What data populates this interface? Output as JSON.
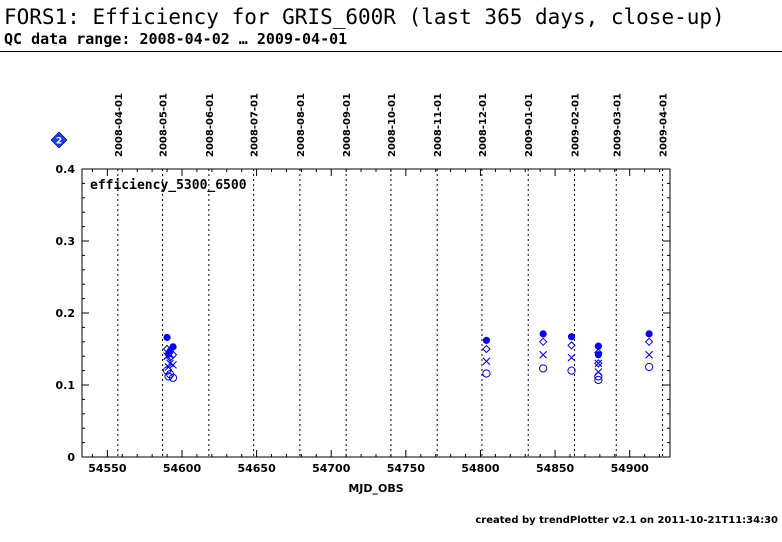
{
  "header": {
    "title": "FORS1: Efficiency for GRIS_600R (last 365 days, close-up)",
    "subtitle": "QC data range: 2008-04-02 … 2009-04-01"
  },
  "footer": {
    "credit": "created by trendPlotter v2.1 on 2011-10-21T11:34:30"
  },
  "legend_icon": "diamond-2-icon",
  "legend_icon_label": "2",
  "colors": {
    "series": "#0000ff",
    "axis": "#000000",
    "icon": "#1a3cff"
  },
  "chart_data": {
    "type": "scatter",
    "title": "",
    "panel_label": "efficiency_5300_6500",
    "xlabel": "MJD_OBS",
    "ylabel": "",
    "xlim": [
      54533,
      54927
    ],
    "ylim": [
      0,
      0.4
    ],
    "x_ticks": [
      54550,
      54600,
      54650,
      54700,
      54750,
      54800,
      54850,
      54900
    ],
    "y_ticks": [
      0,
      0.1,
      0.2,
      0.3,
      0.4
    ],
    "y_tick_labels": [
      "0",
      "0.1",
      "0.2",
      "0.3",
      "0.4"
    ],
    "date_markers": [
      {
        "label": "2008-04-01",
        "mjd": 54557
      },
      {
        "label": "2008-05-01",
        "mjd": 54587
      },
      {
        "label": "2008-06-01",
        "mjd": 54618
      },
      {
        "label": "2008-07-01",
        "mjd": 54648
      },
      {
        "label": "2008-08-01",
        "mjd": 54679
      },
      {
        "label": "2008-09-01",
        "mjd": 54710
      },
      {
        "label": "2008-10-01",
        "mjd": 54740
      },
      {
        "label": "2008-11-01",
        "mjd": 54771
      },
      {
        "label": "2008-12-01",
        "mjd": 54801
      },
      {
        "label": "2009-01-01",
        "mjd": 54832
      },
      {
        "label": "2009-02-01",
        "mjd": 54863
      },
      {
        "label": "2009-03-01",
        "mjd": 54891
      },
      {
        "label": "2009-04-01",
        "mjd": 54922
      }
    ],
    "series": [
      {
        "name": "filled-circle",
        "marker": "filled-circle",
        "points": [
          [
            54590,
            0.166
          ],
          [
            54591,
            0.143
          ],
          [
            54592,
            0.147
          ],
          [
            54594,
            0.153
          ],
          [
            54804,
            0.162
          ],
          [
            54842,
            0.171
          ],
          [
            54861,
            0.167
          ],
          [
            54879,
            0.154
          ],
          [
            54879,
            0.142
          ],
          [
            54913,
            0.171
          ]
        ]
      },
      {
        "name": "diamond",
        "marker": "diamond",
        "points": [
          [
            54590,
            0.15
          ],
          [
            54592,
            0.138
          ],
          [
            54594,
            0.142
          ],
          [
            54804,
            0.15
          ],
          [
            54842,
            0.16
          ],
          [
            54861,
            0.155
          ],
          [
            54879,
            0.145
          ],
          [
            54879,
            0.13
          ],
          [
            54913,
            0.16
          ]
        ]
      },
      {
        "name": "cross",
        "marker": "cross",
        "points": [
          [
            54590,
            0.14
          ],
          [
            54591,
            0.125
          ],
          [
            54592,
            0.13
          ],
          [
            54594,
            0.128
          ],
          [
            54804,
            0.133
          ],
          [
            54842,
            0.142
          ],
          [
            54861,
            0.138
          ],
          [
            54879,
            0.13
          ],
          [
            54879,
            0.118
          ],
          [
            54913,
            0.142
          ]
        ]
      },
      {
        "name": "open-circle",
        "marker": "open-circle",
        "points": [
          [
            54590,
            0.12
          ],
          [
            54591,
            0.112
          ],
          [
            54592,
            0.115
          ],
          [
            54594,
            0.11
          ],
          [
            54804,
            0.116
          ],
          [
            54842,
            0.123
          ],
          [
            54861,
            0.12
          ],
          [
            54879,
            0.112
          ],
          [
            54879,
            0.107
          ],
          [
            54913,
            0.125
          ]
        ]
      }
    ]
  }
}
